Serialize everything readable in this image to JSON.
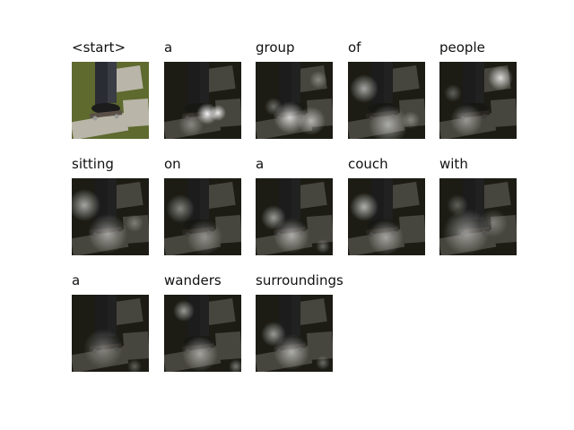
{
  "panels": [
    {
      "word": "<start>",
      "style": "photo"
    },
    {
      "word": "a",
      "style": "attention",
      "focus": "lower-center"
    },
    {
      "word": "group",
      "style": "attention",
      "focus": "bottom-spread"
    },
    {
      "word": "of",
      "style": "attention",
      "focus": "left-and-bottom"
    },
    {
      "word": "people",
      "style": "attention",
      "focus": "upper-right"
    },
    {
      "word": "sitting",
      "style": "attention",
      "focus": "left-wide"
    },
    {
      "word": "on",
      "style": "attention",
      "focus": "left-faint"
    },
    {
      "word": "a",
      "style": "attention",
      "focus": "bottom-left"
    },
    {
      "word": "couch",
      "style": "attention",
      "focus": "left"
    },
    {
      "word": "with",
      "style": "attention",
      "focus": "diffuse-bottom"
    },
    {
      "word": "a",
      "style": "attention",
      "focus": "dim"
    },
    {
      "word": "wanders",
      "style": "attention",
      "focus": "upper-left-and-bottom"
    },
    {
      "word": "surroundings",
      "style": "attention",
      "focus": "bottom-left"
    }
  ],
  "colors": {
    "photo_grass": "#5e6a2e",
    "photo_concrete": "#b9b5a8",
    "photo_pants": "#2a2c33",
    "photo_shoe": "#1c1c1c",
    "attention_dark": "#151510",
    "attention_glow": "#ffffff"
  }
}
